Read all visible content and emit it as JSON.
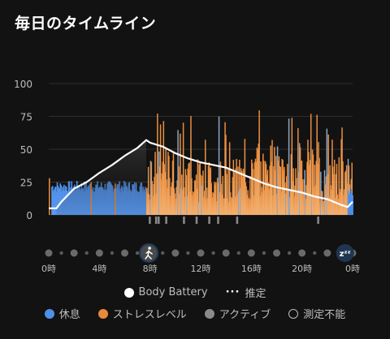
{
  "header": {
    "title": "毎日のタイムライン"
  },
  "chart_data": {
    "type": "bar",
    "ylim": [
      0,
      100
    ],
    "y_ticks": [
      "100",
      "75",
      "50",
      "25",
      "0"
    ],
    "x_ticks": [
      "0時",
      "4時",
      "8時",
      "12時",
      "16時",
      "20時",
      "0時"
    ],
    "body_battery_line": {
      "x_hours": [
        0,
        0.6,
        1,
        2,
        3,
        4,
        5,
        6,
        7,
        7.7,
        8,
        9,
        10,
        11,
        12,
        13,
        14,
        15,
        16,
        17,
        18,
        19,
        20,
        21,
        22,
        23,
        23.6,
        24
      ],
      "values": [
        5,
        5,
        10,
        20,
        25,
        32,
        38,
        45,
        51,
        57,
        55,
        52,
        47,
        43,
        40,
        38,
        36,
        32,
        28,
        24,
        21,
        19,
        17,
        14,
        12,
        8,
        6,
        10
      ]
    },
    "segments": [
      {
        "type": "rest",
        "start": 0.2,
        "end": 7.7
      },
      {
        "type": "stress",
        "start": 7.7,
        "end": 24
      }
    ],
    "grid": true
  },
  "legend": {
    "body_battery": "Body Battery",
    "estimate": "推定",
    "rest": "休息",
    "stress": "ストレスレベル",
    "active": "アクティブ",
    "unmeasurable": "測定不能"
  },
  "colors": {
    "rest": "#4f8fe8",
    "stress": "#e88a3a",
    "active": "#8a8a8a",
    "line": "#ffffff",
    "grid": "#2e2e2e"
  },
  "timeline_icons": [
    "walk-icon",
    "sleep-icon"
  ],
  "sleep_badge": "zᶻᶻ"
}
